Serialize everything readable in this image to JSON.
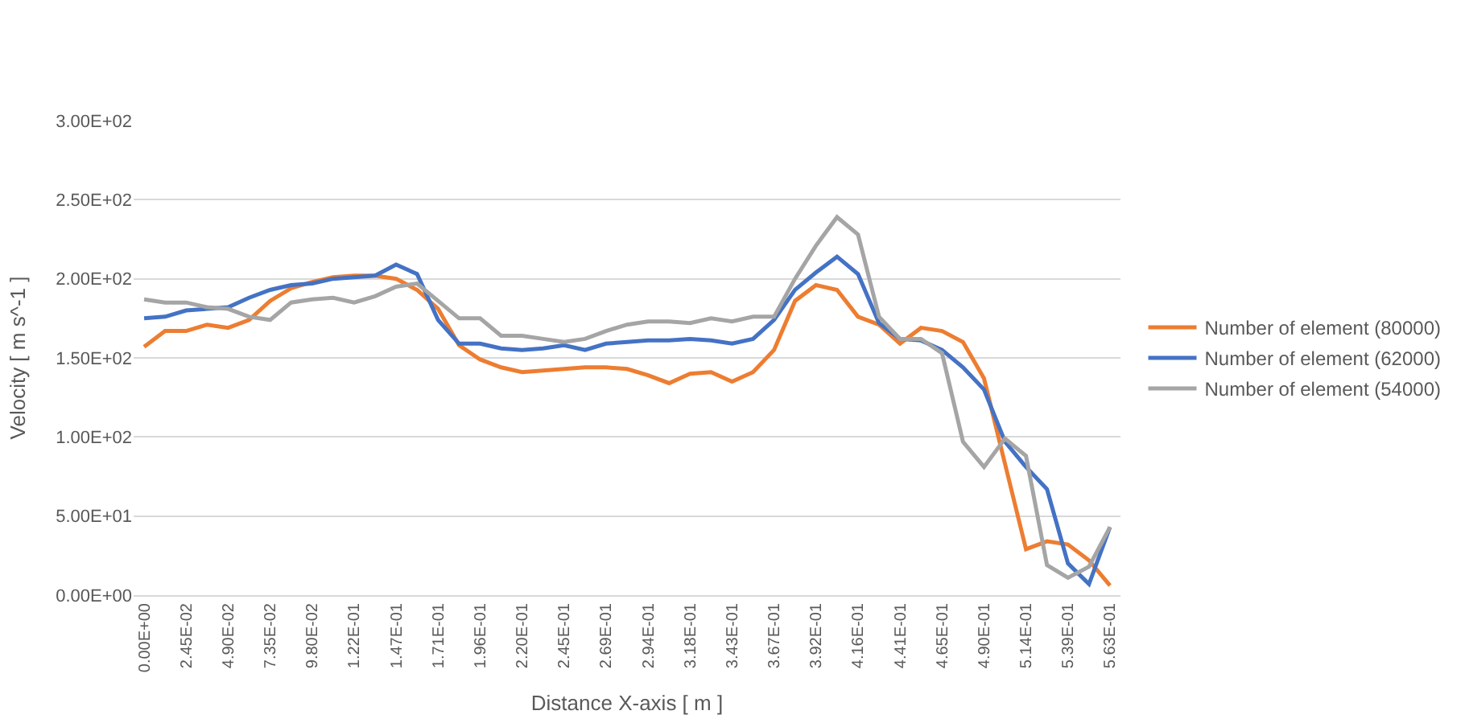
{
  "chart_data": {
    "type": "line",
    "xlabel": "Distance X-axis [ m ]",
    "ylabel": "Velocity [ m s^-1 ]",
    "categories": [
      "0.00E+00",
      null,
      "2.45E-02",
      null,
      "4.90E-02",
      null,
      "7.35E-02",
      null,
      "9.80E-02",
      null,
      "1.22E-01",
      null,
      "1.47E-01",
      null,
      "1.71E-01",
      null,
      "1.96E-01",
      null,
      "2.20E-01",
      null,
      "2.45E-01",
      null,
      "2.69E-01",
      null,
      "2.94E-01",
      null,
      "3.18E-01",
      null,
      "3.43E-01",
      null,
      "3.67E-01",
      null,
      "3.92E-01",
      null,
      "4.16E-01",
      null,
      "4.41E-01",
      null,
      "4.65E-01",
      null,
      "4.90E-01",
      null,
      "5.14E-01",
      null,
      "5.39E-01",
      null,
      "5.63E-01"
    ],
    "series": [
      {
        "name": "Number of element (80000)",
        "color": "#ed7d31",
        "values": [
          157,
          167,
          167,
          171,
          169,
          174,
          186,
          194,
          198,
          201,
          202,
          202,
          200,
          193,
          181,
          158,
          149,
          144,
          141,
          142,
          143,
          144,
          144,
          143,
          139,
          134,
          140,
          141,
          135,
          141,
          155,
          186,
          196,
          193,
          176,
          171,
          159,
          169,
          167,
          160,
          137,
          83,
          29,
          34,
          32,
          22,
          6
        ]
      },
      {
        "name": "Number of element (62000)",
        "color": "#4472c4",
        "values": [
          175,
          176,
          180,
          181,
          182,
          188,
          193,
          196,
          197,
          200,
          201,
          202,
          209,
          203,
          174,
          159,
          159,
          156,
          155,
          156,
          158,
          155,
          159,
          160,
          161,
          161,
          162,
          161,
          159,
          162,
          174,
          193,
          204,
          214,
          203,
          172,
          162,
          161,
          155,
          144,
          130,
          97,
          81,
          67,
          20,
          7,
          43
        ]
      },
      {
        "name": "Number of element (54000)",
        "color": "#a5a5a5",
        "values": [
          187,
          185,
          185,
          182,
          181,
          176,
          174,
          185,
          187,
          188,
          185,
          189,
          195,
          197,
          186,
          175,
          175,
          164,
          164,
          162,
          160,
          162,
          167,
          171,
          173,
          173,
          172,
          175,
          173,
          176,
          176,
          200,
          221,
          239,
          228,
          176,
          162,
          162,
          153,
          97,
          81,
          99,
          88,
          19,
          11,
          18,
          43
        ]
      }
    ],
    "ylim": [
      0,
      300
    ],
    "yticks": [
      {
        "value": 0,
        "label": "0.00E+00"
      },
      {
        "value": 50,
        "label": "5.00E+01"
      },
      {
        "value": 100,
        "label": "1.00E+02"
      },
      {
        "value": 150,
        "label": "1.50E+02"
      },
      {
        "value": 200,
        "label": "2.00E+02"
      },
      {
        "value": 250,
        "label": "2.50E+02"
      },
      {
        "value": 300,
        "label": "3.00E+02"
      }
    ],
    "grid": "y",
    "legend": "right",
    "marker": "none",
    "line_style": "solid"
  }
}
